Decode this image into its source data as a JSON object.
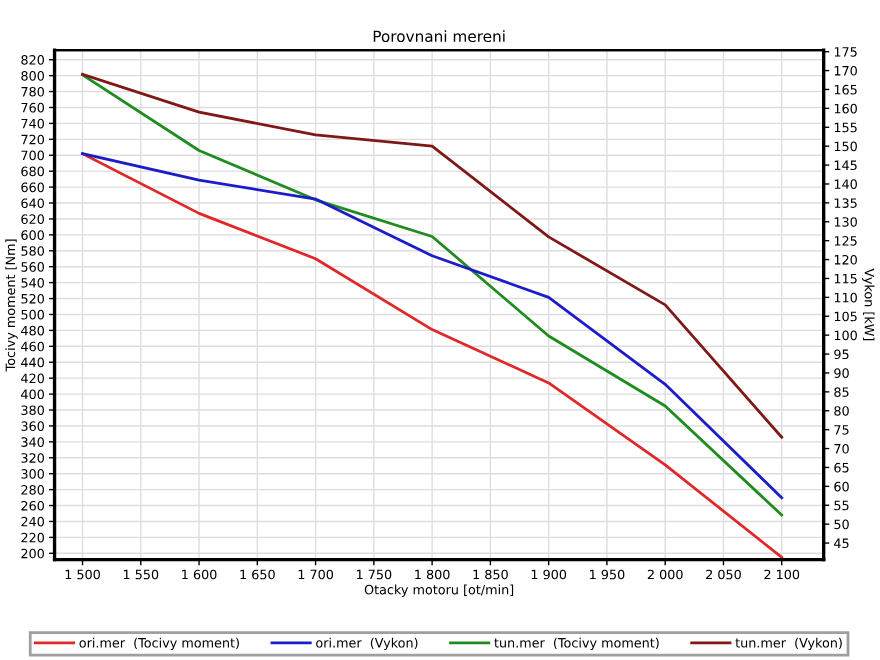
{
  "chart_data": {
    "type": "line",
    "title": "Porovnani mereni",
    "xlabel": "Otacky motoru [ot/min]",
    "ylabel": "Tocivy moment [Nm]",
    "y2label": "Vykon [kW]",
    "x": [
      1500,
      1600,
      1700,
      1800,
      1900,
      2000,
      2100
    ],
    "series": [
      {
        "name": "ori.mer  (Tocivy moment)",
        "color": "#e0282a",
        "values": [
          702,
          627,
          570,
          481,
          414,
          311,
          195
        ]
      },
      {
        "name": "ori.mer  (Vykon)",
        "color": "#1c1cc8",
        "axis": "y2",
        "values": [
          148,
          141,
          136,
          121,
          110,
          87,
          57
        ]
      },
      {
        "name": "tun.mer  (Tocivy moment)",
        "color": "#1e8c1e",
        "values": [
          801,
          706,
          644,
          598,
          473,
          385,
          248
        ]
      },
      {
        "name": "tun.mer  (Vykon)",
        "color": "#801818",
        "axis": "y2",
        "values": [
          169,
          159,
          153,
          150,
          126,
          108,
          73
        ]
      }
    ],
    "xlim": [
      1476,
      2136
    ],
    "xticks": [
      {
        "value": 1500,
        "label": "1 500"
      },
      {
        "value": 1550,
        "label": "1 550"
      },
      {
        "value": 1600,
        "label": "1 600"
      },
      {
        "value": 1650,
        "label": "1 650"
      },
      {
        "value": 1700,
        "label": "1 700"
      },
      {
        "value": 1750,
        "label": "1 750"
      },
      {
        "value": 1800,
        "label": "1 800"
      },
      {
        "value": 1850,
        "label": "1 850"
      },
      {
        "value": 1900,
        "label": "1 900"
      },
      {
        "value": 1950,
        "label": "1 950"
      },
      {
        "value": 2000,
        "label": "2 000"
      },
      {
        "value": 2050,
        "label": "2 050"
      },
      {
        "value": 2100,
        "label": "2 100"
      }
    ],
    "ylim": [
      192,
      832
    ],
    "yticks": [
      200,
      220,
      240,
      260,
      280,
      300,
      320,
      340,
      360,
      380,
      400,
      420,
      440,
      460,
      480,
      500,
      520,
      540,
      560,
      580,
      600,
      620,
      640,
      660,
      680,
      700,
      720,
      740,
      760,
      780,
      800,
      820
    ],
    "y2lim": [
      40.6,
      175.4
    ],
    "y2ticks": [
      45,
      50,
      55,
      60,
      65,
      70,
      75,
      80,
      85,
      90,
      95,
      100,
      105,
      110,
      115,
      120,
      125,
      130,
      135,
      140,
      145,
      150,
      155,
      160,
      165,
      170,
      175
    ],
    "grid": true,
    "legend": "bottom",
    "marker": "none",
    "line_style": "solid"
  }
}
